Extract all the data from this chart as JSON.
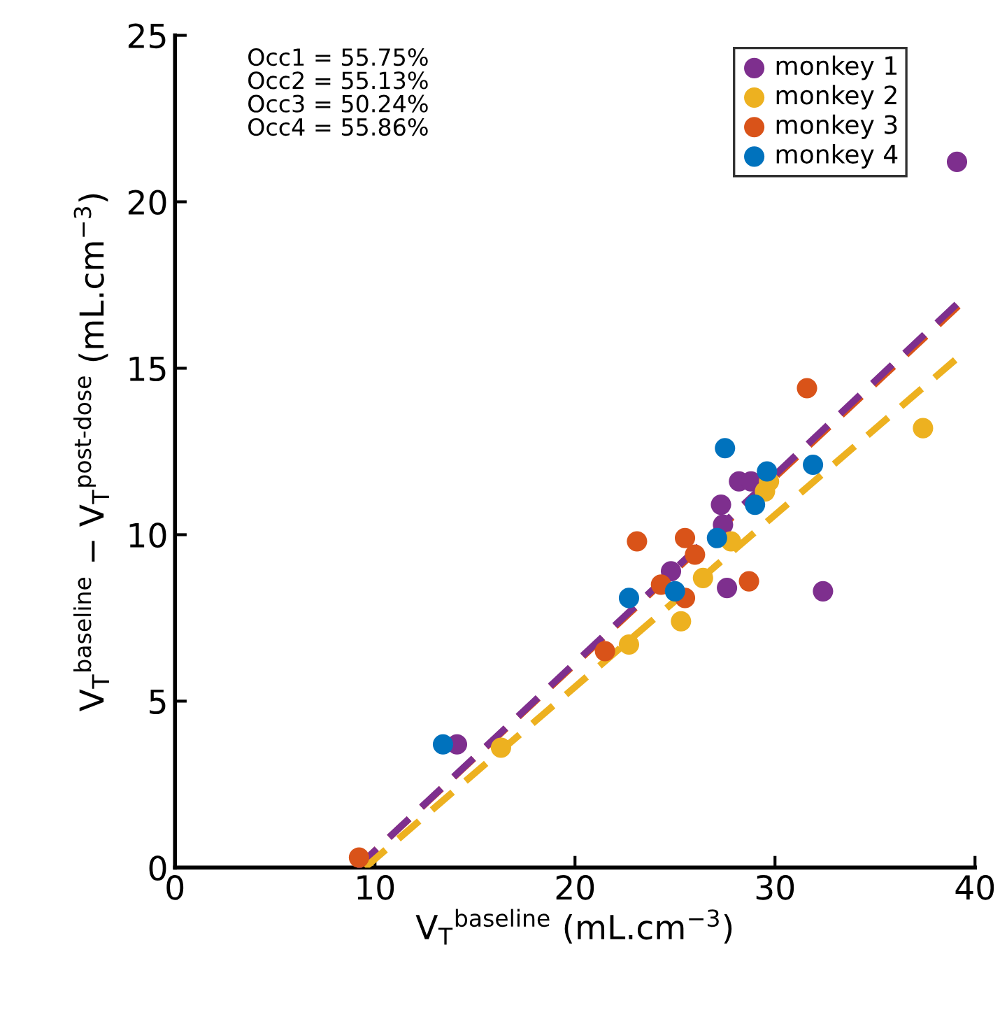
{
  "chart_data": {
    "type": "scatter",
    "xlabel": "V$_{T}$$^{baseline}$ (mL.cm$^{−3}$)",
    "ylabel": "V$_{T}$$^{baseline}$ − V$_{T}$$^{post-dose}$ (mL.cm$^{−3}$)",
    "annotations": [
      "Occ1 = 55.75%",
      "Occ2 = 55.13%",
      "Occ3 = 50.24%",
      "Occ4 = 55.86%"
    ],
    "xlim": [
      0,
      40
    ],
    "ylim": [
      0,
      25
    ],
    "xticks": [
      0,
      10,
      20,
      30,
      40
    ],
    "yticks": [
      0,
      5,
      10,
      15,
      20,
      25
    ],
    "grid": false,
    "legend": "top right",
    "marker": "circle",
    "series": [
      {
        "name": "monkey 1",
        "color": "#7e2f8e",
        "x": [
          39.1,
          14.1,
          32.4,
          27.6,
          24.8,
          27.3,
          27.4,
          28.2,
          28.8
        ],
        "values": [
          21.2,
          3.7,
          8.3,
          8.4,
          8.9,
          10.9,
          10.3,
          11.6,
          11.6
        ]
      },
      {
        "name": "monkey 2",
        "color": "#edb120",
        "x": [
          37.4,
          16.3,
          22.7,
          25.3,
          26.4,
          27.8,
          29.5,
          29.7
        ],
        "values": [
          13.2,
          3.6,
          6.7,
          7.4,
          8.7,
          9.8,
          11.3,
          11.6
        ]
      },
      {
        "name": "monkey 3",
        "color": "#d95319",
        "x": [
          9.2,
          21.5,
          23.1,
          24.3,
          25.5,
          26.0,
          25.5,
          28.7,
          31.6
        ],
        "values": [
          0.3,
          6.5,
          9.8,
          8.5,
          9.9,
          9.4,
          8.1,
          8.6,
          14.4
        ]
      },
      {
        "name": "monkey 4",
        "color": "#0072bd",
        "x": [
          13.4,
          22.7,
          25.0,
          27.5,
          27.1,
          31.9,
          29.6,
          29.0
        ],
        "values": [
          3.7,
          8.1,
          8.3,
          12.6,
          9.9,
          12.1,
          11.9,
          10.9
        ]
      },
      {
        "type": "line",
        "color": "#d95319",
        "line_style": "dashed",
        "marker": "none",
        "x": [
          9.1,
          39.4
        ],
        "values": [
          0,
          17.0
        ]
      },
      {
        "type": "line",
        "color": "#7e2f8e",
        "line_style": "dashed",
        "marker": "none",
        "x": [
          9.1,
          39.4
        ],
        "values": [
          0,
          17.1
        ]
      },
      {
        "type": "line",
        "color": "#edb120",
        "line_style": "dashed",
        "marker": "none",
        "x": [
          9.5,
          39.3
        ],
        "values": [
          0,
          15.4
        ]
      }
    ]
  }
}
